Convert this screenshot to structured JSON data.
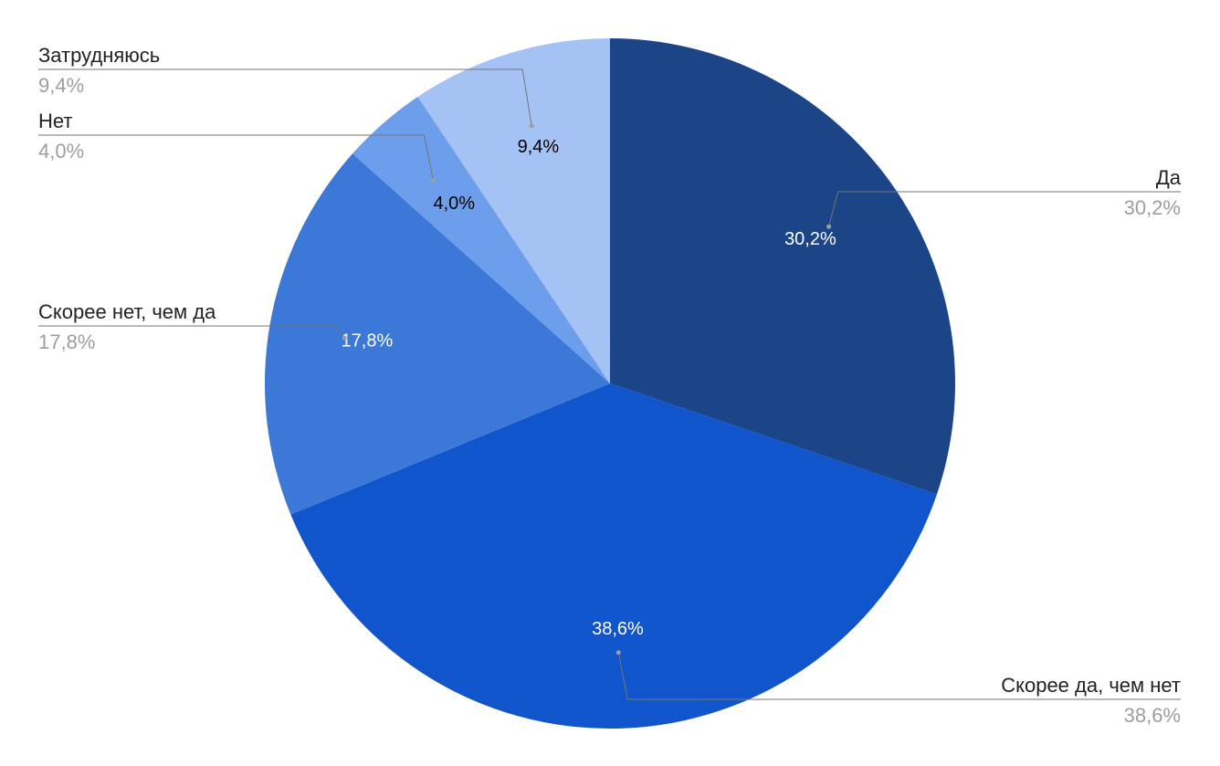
{
  "chart_data": {
    "type": "pie",
    "slices": [
      {
        "name": "Да",
        "value": 30.2,
        "label": "30,2%",
        "color": "#1c4587",
        "label_color": "#ffffff"
      },
      {
        "name": "Скорее да, чем нет",
        "value": 38.6,
        "label": "38,6%",
        "color": "#1155cc",
        "label_color": "#ffffff"
      },
      {
        "name": "Скорее нет, чем да",
        "value": 17.8,
        "label": "17,8%",
        "color": "#3c78d8",
        "label_color": "#ffffff"
      },
      {
        "name": "Нет",
        "value": 4.0,
        "label": "4,0%",
        "color": "#6d9eeb",
        "label_color": "#000000"
      },
      {
        "name": "Затрудняюсь",
        "value": 9.4,
        "label": "9,4%",
        "color": "#a4c2f4",
        "label_color": "#000000"
      }
    ],
    "start": "12 o'clock",
    "direction": "clockwise",
    "legend": "callout labels outside pie"
  }
}
